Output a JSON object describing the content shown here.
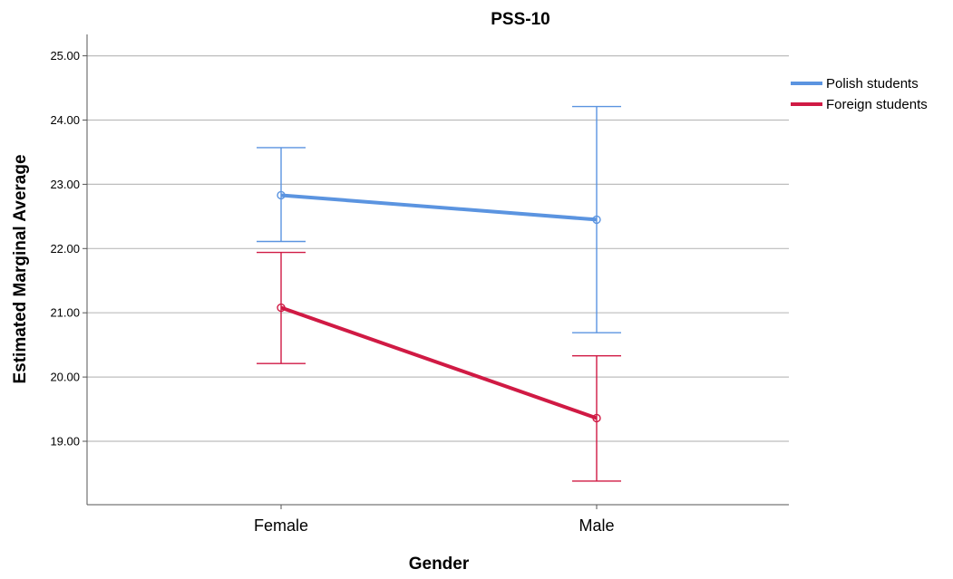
{
  "chart_data": {
    "type": "line",
    "title": "PSS-10",
    "xlabel": "Gender",
    "ylabel": "Estimated Marginal Average",
    "categories": [
      "Female",
      "Male"
    ],
    "ylim": [
      18,
      25.4
    ],
    "yticks": [
      19,
      20,
      21,
      22,
      23,
      24,
      25
    ],
    "ytick_labels": [
      "19.00",
      "20.00",
      "21.00",
      "22.00",
      "23.00",
      "24.00",
      "25.00"
    ],
    "grid": "horizontal",
    "legend_position": "top-right",
    "error_bars": true,
    "series": [
      {
        "name": "Polish students",
        "color": "#5b94e0",
        "values": [
          22.83,
          22.45
        ],
        "lower": [
          22.11,
          20.69
        ],
        "upper": [
          23.57,
          24.21
        ]
      },
      {
        "name": "Foreign students",
        "color": "#d01a44",
        "values": [
          21.08,
          19.36
        ],
        "lower": [
          20.21,
          18.38
        ],
        "upper": [
          21.94,
          20.33
        ]
      }
    ]
  }
}
